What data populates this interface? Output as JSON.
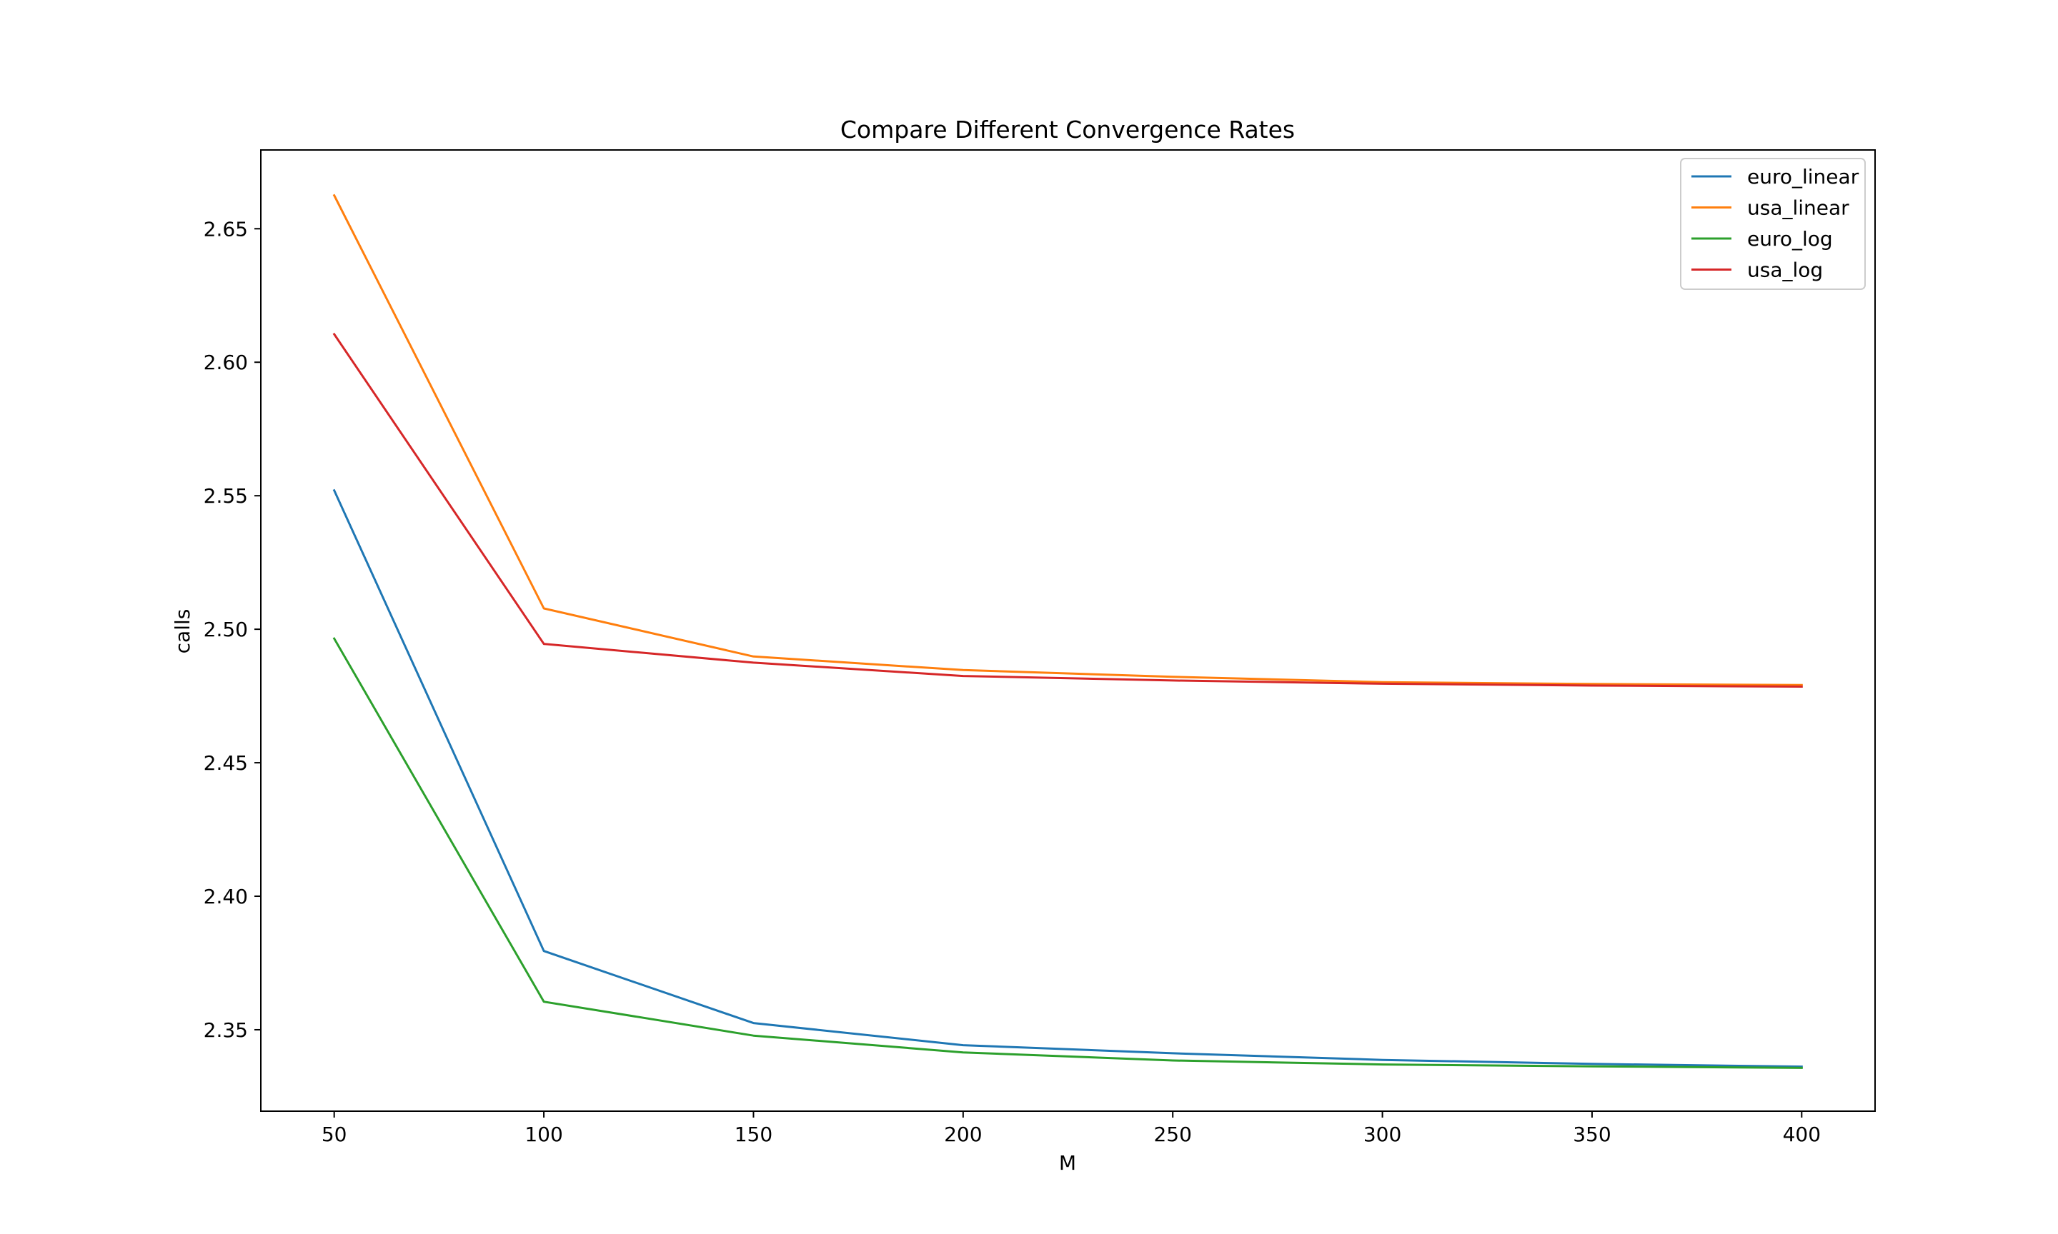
{
  "chart_data": {
    "type": "line",
    "title": "Compare Different Convergence Rates",
    "xlabel": "M",
    "ylabel": "calls",
    "x": [
      50,
      100,
      150,
      200,
      250,
      300,
      350,
      400
    ],
    "xticks": [
      50,
      100,
      150,
      200,
      250,
      300,
      350,
      400
    ],
    "yticks": [
      2.35,
      2.4,
      2.45,
      2.5,
      2.55,
      2.6,
      2.65
    ],
    "ytick_labels": [
      "2.35",
      "2.40",
      "2.45",
      "2.50",
      "2.55",
      "2.60",
      "2.65"
    ],
    "xlim": [
      32.5,
      417.5
    ],
    "ylim": [
      2.3195,
      2.6795
    ],
    "grid": false,
    "legend_position": "top-right",
    "series": [
      {
        "name": "euro_linear",
        "color": "#1f77b4",
        "values": [
          2.552,
          2.3795,
          2.3525,
          2.3442,
          2.3412,
          2.3387,
          2.3372,
          2.3362
        ]
      },
      {
        "name": "usa_linear",
        "color": "#ff7f0e",
        "values": [
          2.6625,
          2.5078,
          2.4898,
          2.4847,
          2.4822,
          2.4802,
          2.4795,
          2.4791
        ]
      },
      {
        "name": "euro_log",
        "color": "#2ca02c",
        "values": [
          2.4965,
          2.3605,
          2.3478,
          2.3415,
          2.3385,
          2.337,
          2.3363,
          2.3357
        ]
      },
      {
        "name": "usa_log",
        "color": "#d62728",
        "values": [
          2.6105,
          2.4945,
          2.4875,
          2.4825,
          2.4808,
          2.4796,
          2.4789,
          2.4785
        ]
      }
    ]
  }
}
